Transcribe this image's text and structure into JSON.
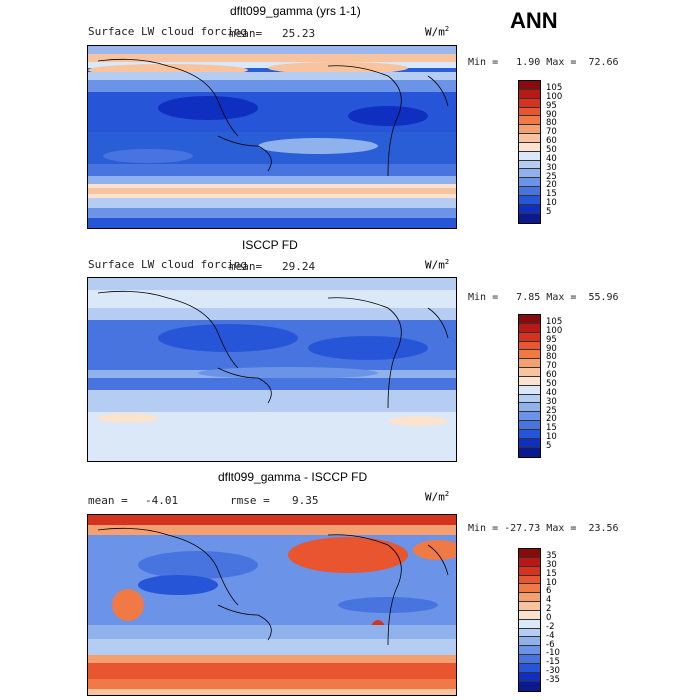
{
  "season": "ANN",
  "panels": [
    {
      "title": "dflt099_gamma (yrs 1-1)",
      "variable": "Surface LW cloud forcing",
      "mean_label": "mean=",
      "mean_value": "25.23",
      "unit_base": "W/m",
      "unit_exp": "2",
      "min_label": "Min =",
      "min_value": "1.90",
      "max_label": "Max =",
      "max_value": "72.66",
      "colorbar": {
        "labels": [
          "105",
          "100",
          "95",
          "90",
          "80",
          "70",
          "60",
          "50",
          "40",
          "30",
          "25",
          "20",
          "15",
          "10",
          "5"
        ],
        "colors": [
          "#8a0b0b",
          "#b71a16",
          "#d63220",
          "#e8552e",
          "#f07a45",
          "#f5a070",
          "#f8c4a0",
          "#fbe3cf",
          "#dbe8f8",
          "#b5cdf2",
          "#8fb1ec",
          "#6b93e8",
          "#4874e0",
          "#2655d8",
          "#0e2fc0",
          "#0a1a8e"
        ]
      }
    },
    {
      "title": "ISCCP FD",
      "variable": "Surface LW cloud forcing",
      "mean_label": "mean=",
      "mean_value": "29.24",
      "unit_base": "W/m",
      "unit_exp": "2",
      "min_label": "Min =",
      "min_value": "7.85",
      "max_label": "Max =",
      "max_value": "55.96",
      "colorbar": {
        "labels": [
          "105",
          "100",
          "95",
          "90",
          "80",
          "70",
          "60",
          "50",
          "40",
          "30",
          "25",
          "20",
          "15",
          "10",
          "5"
        ],
        "colors": [
          "#8a0b0b",
          "#b71a16",
          "#d63220",
          "#e8552e",
          "#f07a45",
          "#f5a070",
          "#f8c4a0",
          "#fbe3cf",
          "#dbe8f8",
          "#b5cdf2",
          "#8fb1ec",
          "#6b93e8",
          "#4874e0",
          "#2655d8",
          "#0e2fc0",
          "#0a1a8e"
        ]
      }
    },
    {
      "title": "dflt099_gamma - ISCCP FD",
      "mean_label": "mean =",
      "mean_value": "-4.01",
      "rmse_label": "rmse =",
      "rmse_value": "9.35",
      "unit_base": "W/m",
      "unit_exp": "2",
      "min_label": "Min =",
      "min_value": "-27.73",
      "max_label": "Max =",
      "max_value": "23.56",
      "colorbar": {
        "labels": [
          "35",
          "30",
          "15",
          "10",
          "6",
          "4",
          "2",
          "0",
          "-2",
          "-4",
          "-6",
          "-10",
          "-15",
          "-30",
          "-35"
        ],
        "colors": [
          "#8a0b0b",
          "#b71a16",
          "#d63220",
          "#e8552e",
          "#f07a45",
          "#f5a070",
          "#f8c4a0",
          "#fbe3cf",
          "#dbe8f8",
          "#b5cdf2",
          "#8fb1ec",
          "#6b93e8",
          "#4874e0",
          "#2655d8",
          "#0e2fc0",
          "#0a1a8e"
        ]
      }
    }
  ]
}
